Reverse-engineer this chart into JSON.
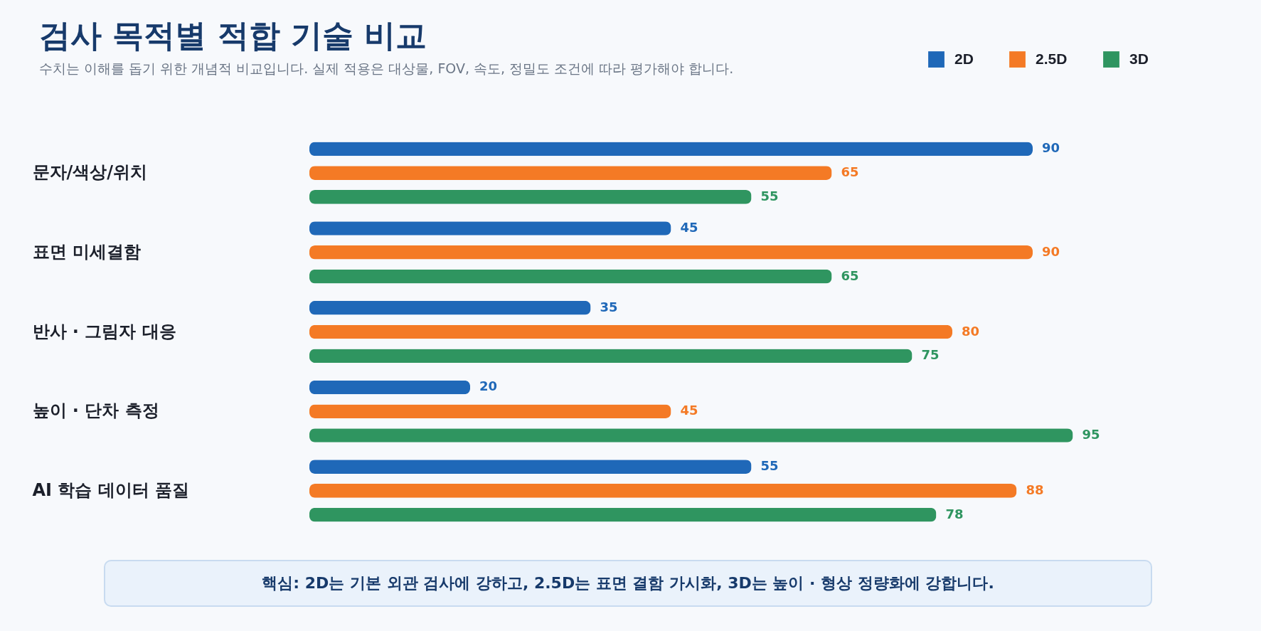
{
  "chart_data": {
    "type": "bar",
    "orientation": "horizontal",
    "title": "검사 목적별 적합 기술 비교",
    "subtitle": "수치는 이해를 돕기 위한 개념적 비교입니다. 실제 적용은 대상물, FOV, 속도, 정밀도 조건에 따라 평가해야 합니다.",
    "categories": [
      "문자/색상/위치",
      "표면 미세결함",
      "반사 · 그림자 대응",
      "높이 · 단차 측정",
      "AI 학습 데이터 품질"
    ],
    "series": [
      {
        "name": "2D",
        "color": "#1f68b8",
        "values": [
          90,
          45,
          35,
          20,
          55
        ]
      },
      {
        "name": "2.5D",
        "color": "#f47a25",
        "values": [
          65,
          90,
          80,
          45,
          88
        ]
      },
      {
        "name": "3D",
        "color": "#2f9560",
        "values": [
          55,
          65,
          75,
          95,
          78
        ]
      }
    ],
    "data_labels": true,
    "legend": "top right",
    "grid": false,
    "tick_labels": "y",
    "annotations": [
      "핵심: 2D는 기본 외관 검사에 강하고, 2.5D는 표면 결함 가시화, 3D는 높이 · 형상 정량화에 강합니다."
    ]
  }
}
